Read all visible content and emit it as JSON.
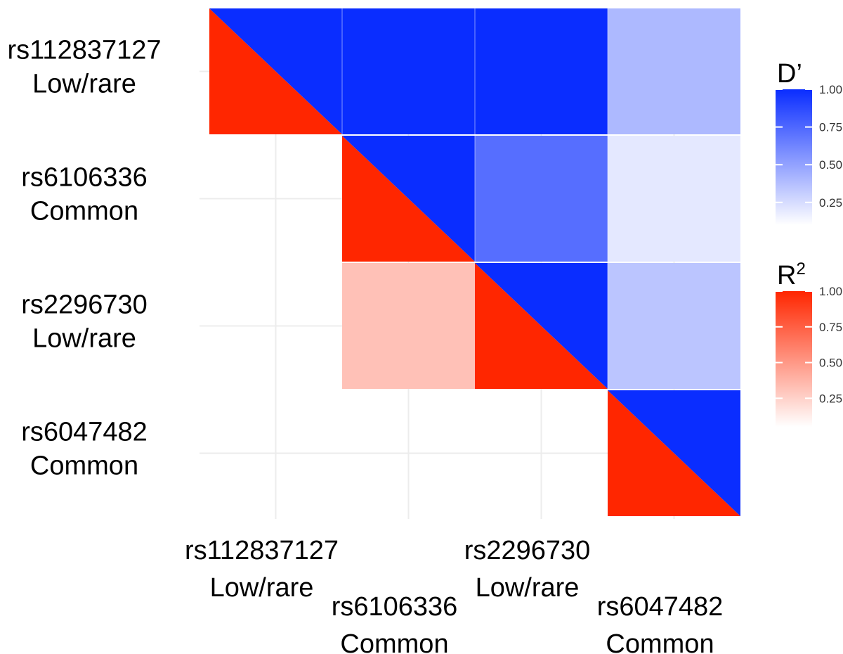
{
  "chart_data": {
    "type": "heatmap",
    "snps": [
      "rs112837127",
      "rs6106336",
      "rs2296730",
      "rs6047482"
    ],
    "snp_classes": [
      "Low/rare",
      "Common",
      "Low/rare",
      "Common"
    ],
    "d_prime": [
      [
        1.0,
        1.0,
        1.0,
        0.4
      ],
      [
        null,
        1.0,
        0.72,
        0.2
      ],
      [
        null,
        null,
        1.0,
        0.35
      ],
      [
        null,
        null,
        null,
        1.0
      ]
    ],
    "r_squared": [
      [
        1.0,
        null,
        null,
        null
      ],
      [
        null,
        1.0,
        null,
        null
      ],
      [
        null,
        0.32,
        1.0,
        null
      ],
      [
        null,
        null,
        null,
        1.0
      ]
    ],
    "diagonal": "split",
    "legends": [
      {
        "title": "D’",
        "ticks": [
          "1.00",
          "0.75",
          "0.50",
          "0.25"
        ],
        "tick_values": [
          1.0,
          0.75,
          0.5,
          0.25
        ],
        "range": [
          0.1,
          1.0
        ],
        "color_high": "#0a2dff",
        "color_low": "#ffffff"
      },
      {
        "title_main": "R",
        "title_sup": "2",
        "ticks": [
          "1.00",
          "0.75",
          "0.50",
          "0.25"
        ],
        "tick_values": [
          1.0,
          0.75,
          0.5,
          0.25
        ],
        "range": [
          0.05,
          1.0
        ],
        "color_high": "#ff2600",
        "color_low": "#ffffff"
      }
    ],
    "legend_placement": "right",
    "grid": true
  }
}
